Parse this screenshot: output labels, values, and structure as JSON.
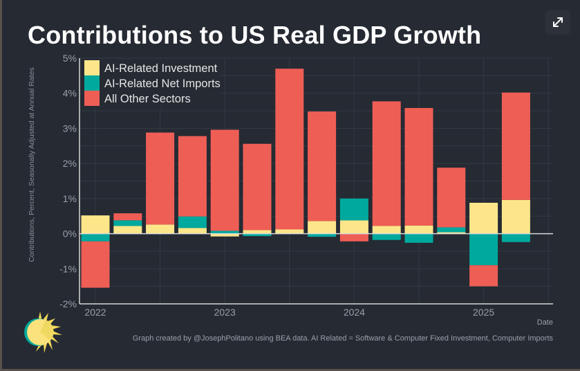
{
  "header": {
    "title": "Contributions to US Real GDP Growth",
    "expand_button_icon": "expand-icon"
  },
  "footer": {
    "credit": "Graph created by @JosephPolitano using BEA data. AI Related = Software & Computer Fixed Investment, Computer Imports"
  },
  "logo": {
    "icon": "sun-logo-icon"
  },
  "colors": {
    "background": "#252a33",
    "grid": "#343a44",
    "axis": "#d8d8d8",
    "ai_investment": "#fde68a",
    "ai_net_imports": "#00a99d",
    "other_sectors": "#ee5e55",
    "text_muted": "#9aa0a8"
  },
  "chart_data": {
    "type": "bar",
    "stacked": true,
    "title": "Contributions to US Real GDP Growth",
    "xlabel": "Date",
    "ylabel": "Contributions, Percent, Seasonally Adjusted at Annual Rates",
    "ylim": [
      -2,
      5
    ],
    "yticks": [
      -2,
      -1,
      0,
      1,
      2,
      3,
      4,
      5
    ],
    "ytick_labels": [
      "-2%",
      "-1%",
      "0%",
      "1%",
      "2%",
      "3%",
      "4%",
      "5%"
    ],
    "xtick_labels": [
      "2022",
      "2023",
      "2024",
      "2025"
    ],
    "grid": true,
    "legend_position": "top-left",
    "categories": [
      "2022 Q1",
      "2022 Q2",
      "2022 Q3",
      "2022 Q4",
      "2023 Q1",
      "2023 Q2",
      "2023 Q3",
      "2023 Q4",
      "2024 Q1",
      "2024 Q2",
      "2024 Q3",
      "2024 Q4",
      "2025 Q1",
      "2025 Q2"
    ],
    "series": [
      {
        "name": "AI-Related Investment",
        "color": "#fde68a",
        "values": [
          0.52,
          0.22,
          0.26,
          0.16,
          -0.08,
          0.1,
          0.12,
          0.36,
          0.38,
          0.22,
          0.23,
          0.04,
          0.88,
          0.96
        ]
      },
      {
        "name": "AI-Related Net Imports",
        "color": "#00a99d",
        "values": [
          -0.22,
          0.16,
          0.0,
          0.33,
          0.08,
          -0.07,
          0.0,
          -0.09,
          0.62,
          -0.18,
          -0.26,
          0.14,
          -0.9,
          -0.24
        ]
      },
      {
        "name": "All Other Sectors",
        "color": "#ee5e55",
        "values": [
          -1.32,
          0.2,
          2.62,
          2.29,
          2.88,
          2.46,
          4.58,
          3.12,
          -0.22,
          3.55,
          3.35,
          1.7,
          -0.6,
          3.06
        ]
      }
    ]
  }
}
